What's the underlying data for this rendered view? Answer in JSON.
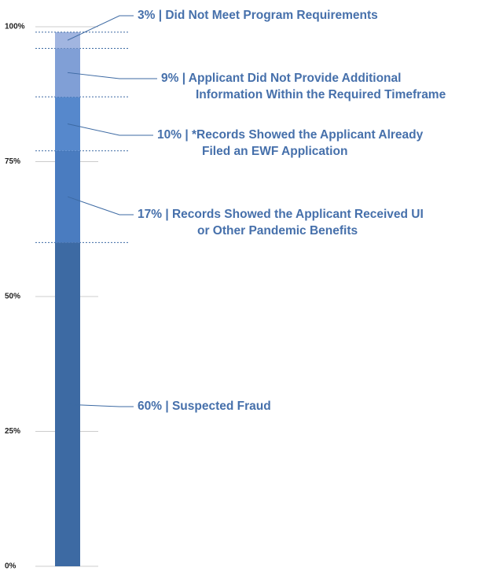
{
  "chart_data": {
    "type": "stacked-bar",
    "ylim": [
      0,
      100
    ],
    "yticks": [
      {
        "value": 0,
        "label": "0%"
      },
      {
        "value": 25,
        "label": "25%"
      },
      {
        "value": 50,
        "label": "50%"
      },
      {
        "value": 75,
        "label": "75%"
      },
      {
        "value": 100,
        "label": "100%"
      }
    ],
    "grid": true,
    "series": [
      {
        "name": "60% | Suspected Fraud",
        "color": "#3d6aa3",
        "values": [
          60
        ]
      },
      {
        "name": "17% | Records Showed the Applicant Received UI\nor Other Pandemic Benefits",
        "color": "#4a7cc0",
        "values": [
          17
        ]
      },
      {
        "name": "10% | *Records Showed the Applicant Already\nFiled an EWF Application",
        "color": "#5688cc",
        "values": [
          10
        ]
      },
      {
        "name": "9% | Applicant Did Not Provide Additional\nInformation Within the Required Timeframe",
        "color": "#809fd6",
        "values": [
          9
        ]
      },
      {
        "name": "3% | Did Not Meet Program Requirements",
        "color": "#a1b5e0",
        "values": [
          3
        ]
      }
    ]
  }
}
